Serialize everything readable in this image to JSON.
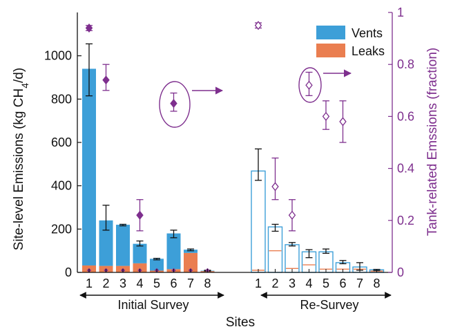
{
  "chart_data": {
    "type": "bar",
    "xlabel": "Sites",
    "ylabel": "Site-level Emissions (kg CH4/d)",
    "ylabel_parts": {
      "pre": "Site-level Emissions (kg CH",
      "sub": "4",
      "post": "/d)"
    },
    "y2label": "Tank-related Emssions (fraction)",
    "ylim": [
      0,
      1200
    ],
    "y2lim": [
      0,
      1
    ],
    "yticks": [
      0,
      200,
      400,
      600,
      800,
      1000
    ],
    "y2ticks": [
      0,
      0.2,
      0.4,
      0.6,
      0.8,
      1
    ],
    "y2tick_labels": [
      "0",
      "0.2",
      "0.4",
      "0.6",
      "0.8",
      "1"
    ],
    "legend": {
      "placement": "top-right",
      "entries": [
        {
          "name": "Vents",
          "color": "#3d9fd8"
        },
        {
          "name": "Leaks",
          "color": "#ea7e50"
        }
      ]
    },
    "groups": [
      {
        "label": "Initial Survey",
        "style": "filled",
        "categories": [
          "1",
          "2",
          "3",
          "4",
          "5",
          "6",
          "7",
          "8"
        ],
        "series": [
          {
            "name": "Vents",
            "values": [
              908,
              210,
              190,
              90,
              55,
              165,
              15,
              2
            ]
          },
          {
            "name": "Leaks",
            "values": [
              32,
              30,
              30,
              42,
              8,
              15,
              90,
              6
            ]
          }
        ],
        "error_low": [
          815,
          195,
          215,
          122,
          58,
          160,
          100,
          6
        ],
        "error_high": [
          1055,
          310,
          222,
          145,
          65,
          195,
          108,
          10
        ],
        "tank_fraction": [
          0.94,
          0.74,
          null,
          0.22,
          null,
          0.65,
          null,
          null
        ],
        "tank_fraction_low": [
          0.93,
          0.7,
          null,
          0.16,
          null,
          0.62,
          null,
          null
        ],
        "tank_fraction_high": [
          0.95,
          0.8,
          null,
          0.28,
          null,
          0.69,
          null,
          null
        ],
        "tank_markers_small": [
          0.0,
          0.0,
          0.0,
          0.0,
          0.0,
          0.0,
          0.0,
          0.0
        ]
      },
      {
        "label": "Re-Survey",
        "style": "outline",
        "categories": [
          "1",
          "2",
          "3",
          "4",
          "5",
          "6",
          "7",
          "8"
        ],
        "series": [
          {
            "name": "Vents",
            "values": [
              458,
              110,
              110,
              60,
              80,
              30,
              10,
              6
            ]
          },
          {
            "name": "Leaks",
            "values": [
              10,
              100,
              18,
              35,
              15,
              15,
              15,
              6
            ]
          }
        ],
        "error_low": [
          425,
          190,
          122,
          68,
          88,
          40,
          10,
          8
        ],
        "error_high": [
          570,
          222,
          138,
          105,
          108,
          55,
          45,
          14
        ],
        "tank_fraction": [
          0.95,
          0.33,
          0.22,
          0.72,
          0.6,
          0.58,
          null,
          null
        ],
        "tank_fraction_low": [
          0.94,
          0.28,
          0.16,
          0.68,
          0.55,
          0.5,
          null,
          null
        ],
        "tank_fraction_high": [
          0.96,
          0.44,
          0.28,
          0.77,
          0.66,
          0.66,
          null,
          null
        ]
      }
    ]
  }
}
